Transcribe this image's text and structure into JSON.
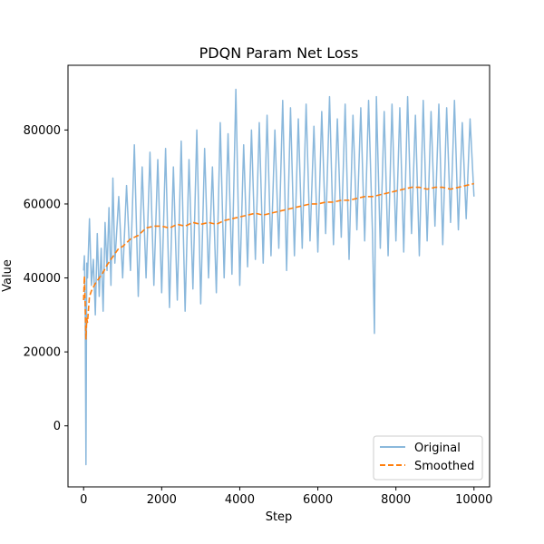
{
  "chart_data": {
    "type": "line",
    "title": "PDQN Param Net Loss",
    "xlabel": "Step",
    "ylabel": "Value",
    "xlim": [
      -400,
      10400
    ],
    "ylim": [
      -16500,
      97500
    ],
    "xticks": [
      0,
      2000,
      4000,
      6000,
      8000,
      10000
    ],
    "yticks": [
      0,
      20000,
      40000,
      60000,
      80000
    ],
    "grid": false,
    "legend_position": "lower-right",
    "series": [
      {
        "name": "Original",
        "style": "solid",
        "color": "#8ab8dc",
        "x": [
          0,
          20,
          40,
          60,
          80,
          100,
          150,
          200,
          250,
          300,
          350,
          400,
          450,
          500,
          550,
          600,
          650,
          700,
          750,
          800,
          900,
          1000,
          1100,
          1200,
          1300,
          1400,
          1500,
          1600,
          1700,
          1800,
          1900,
          2000,
          2100,
          2200,
          2300,
          2400,
          2500,
          2600,
          2700,
          2800,
          2900,
          3000,
          3100,
          3200,
          3300,
          3400,
          3500,
          3600,
          3700,
          3800,
          3900,
          4000,
          4100,
          4200,
          4300,
          4400,
          4500,
          4600,
          4700,
          4800,
          4900,
          5000,
          5100,
          5200,
          5300,
          5400,
          5500,
          5600,
          5700,
          5800,
          5900,
          6000,
          6100,
          6200,
          6300,
          6400,
          6500,
          6600,
          6700,
          6800,
          6900,
          7000,
          7100,
          7200,
          7300,
          7400,
          7450,
          7500,
          7600,
          7700,
          7800,
          7900,
          8000,
          8100,
          8200,
          8300,
          8400,
          8500,
          8600,
          8700,
          8800,
          8900,
          9000,
          9100,
          9200,
          9300,
          9400,
          9500,
          9600,
          9700,
          9800,
          9900,
          10000
        ],
        "values": [
          42000,
          46000,
          33000,
          -10500,
          44000,
          40000,
          56000,
          38000,
          45000,
          30000,
          52000,
          35000,
          48000,
          31000,
          55000,
          42000,
          59000,
          38000,
          67000,
          44000,
          62000,
          40000,
          65000,
          42000,
          76000,
          35000,
          70000,
          40000,
          74000,
          38000,
          72000,
          36000,
          75000,
          32000,
          70000,
          34000,
          77000,
          31000,
          72000,
          37000,
          80000,
          33000,
          75000,
          40000,
          70000,
          36000,
          82000,
          40000,
          79000,
          41000,
          91000,
          38000,
          76000,
          43000,
          80000,
          45000,
          82000,
          44000,
          84000,
          46000,
          80000,
          48000,
          88000,
          42000,
          86000,
          46000,
          83000,
          48000,
          87000,
          50000,
          81000,
          47000,
          85000,
          52000,
          89000,
          49000,
          83000,
          51000,
          87000,
          45000,
          84000,
          53000,
          86000,
          50000,
          88000,
          52000,
          25000,
          89000,
          48000,
          85000,
          46000,
          87000,
          50000,
          86000,
          47000,
          89000,
          52000,
          84000,
          46000,
          88000,
          50000,
          85000,
          54000,
          87000,
          49000,
          86000,
          55000,
          88000,
          53000,
          82000,
          56000,
          83000,
          62000
        ]
      },
      {
        "name": "Smoothed",
        "style": "dashed",
        "color": "#ff7f0e",
        "x": [
          0,
          20,
          40,
          60,
          80,
          100,
          150,
          200,
          300,
          400,
          500,
          600,
          700,
          800,
          900,
          1000,
          1200,
          1400,
          1600,
          1800,
          2000,
          2200,
          2400,
          2600,
          2800,
          3000,
          3200,
          3400,
          3600,
          3800,
          4000,
          4200,
          4400,
          4600,
          4800,
          5000,
          5200,
          5400,
          5600,
          5800,
          6000,
          6200,
          6400,
          6600,
          6800,
          7000,
          7200,
          7400,
          7600,
          7800,
          8000,
          8200,
          8400,
          8600,
          8800,
          9000,
          9200,
          9400,
          9600,
          9800,
          10000
        ],
        "values": [
          34000,
          40500,
          33000,
          23500,
          29000,
          28000,
          35000,
          36500,
          38500,
          40000,
          41500,
          43500,
          45000,
          46500,
          48000,
          48500,
          50500,
          51500,
          53500,
          54000,
          54000,
          53500,
          54500,
          54000,
          55000,
          54500,
          55000,
          54500,
          55500,
          56000,
          56500,
          57000,
          57500,
          57000,
          57500,
          58000,
          58500,
          59000,
          59500,
          60000,
          60000,
          60500,
          60500,
          61000,
          61000,
          61500,
          62000,
          62000,
          62500,
          63000,
          63500,
          64000,
          64500,
          64500,
          64000,
          64500,
          64500,
          64000,
          64500,
          65000,
          65500
        ]
      }
    ]
  }
}
